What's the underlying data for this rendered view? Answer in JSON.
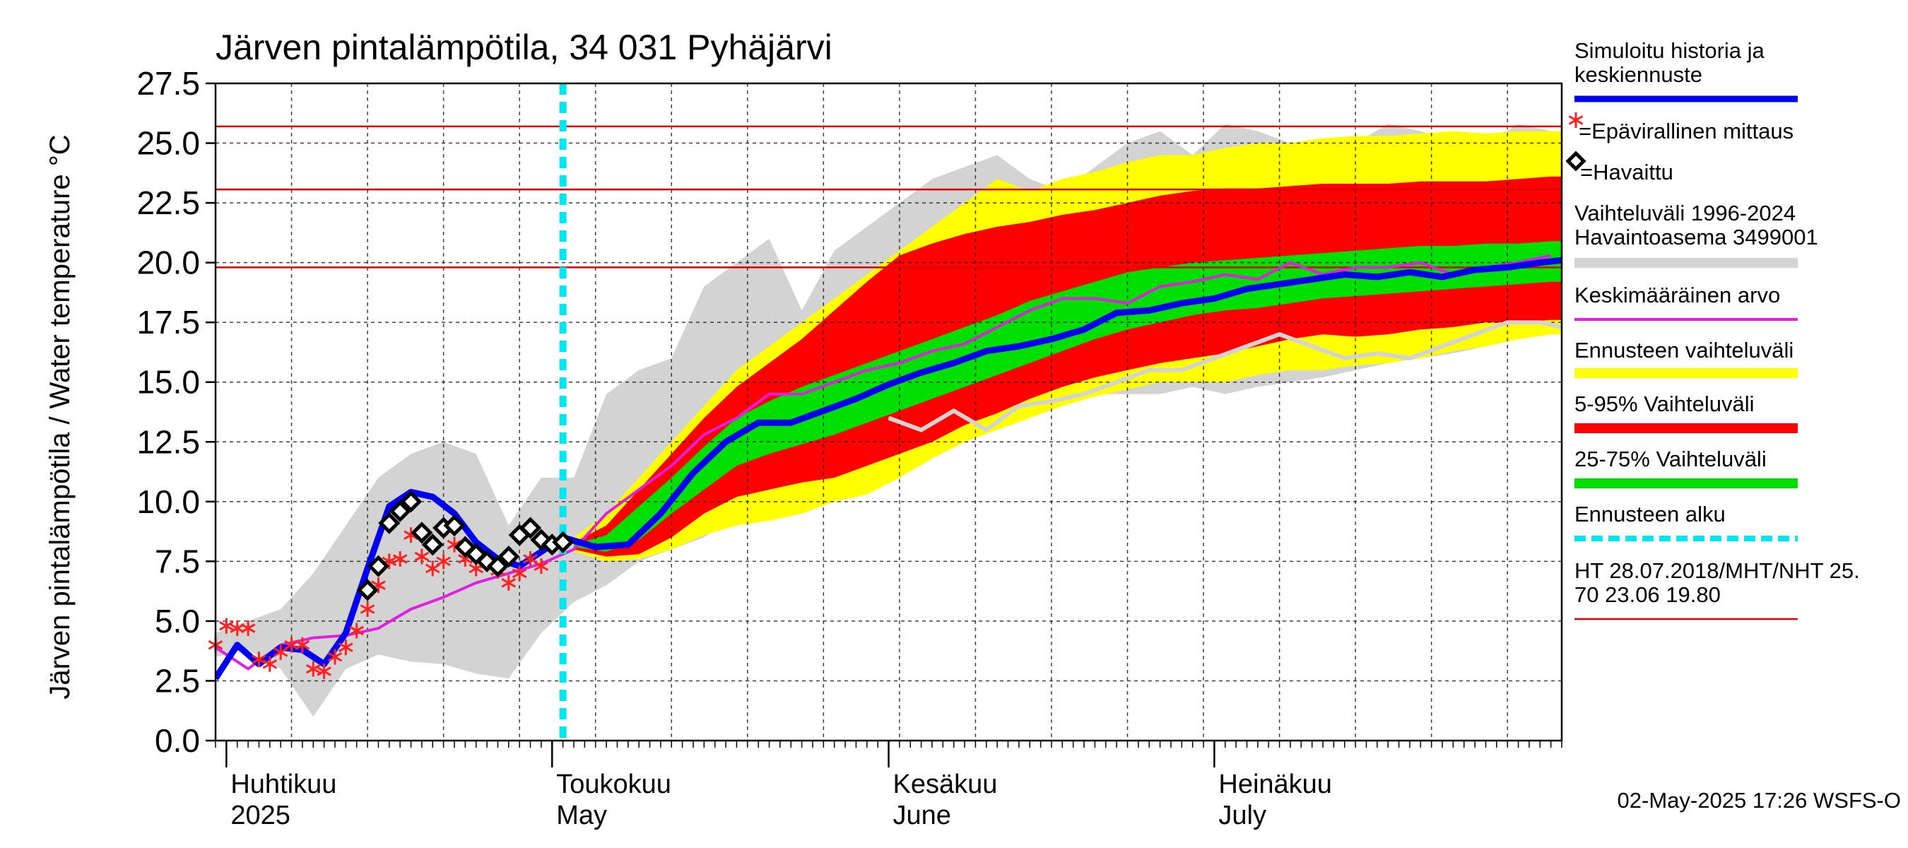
{
  "chart_data": {
    "type": "area",
    "title": "Järven pintalämpötila, 34 031 Pyhäjärvi",
    "ylabel": "Järven pintalämpötila / Water temperature °C",
    "ylim": [
      0,
      27.5
    ],
    "yticks": [
      "0.0",
      "2.5",
      "5.0",
      "7.5",
      "10.0",
      "12.5",
      "15.0",
      "17.5",
      "20.0",
      "22.5",
      "25.0",
      "27.5"
    ],
    "xlim": [
      "2025-03-31",
      "2025-08-02"
    ],
    "month_labels": [
      {
        "fi": "Huhtikuu",
        "en": "2025",
        "date": "2025-04-01"
      },
      {
        "fi": "Toukokuu",
        "en": "May",
        "date": "2025-05-01"
      },
      {
        "fi": "Kesäkuu",
        "en": "June",
        "date": "2025-06-01"
      },
      {
        "fi": "Heinäkuu",
        "en": "July",
        "date": "2025-07-01"
      }
    ],
    "forecast_start": "2025-05-02",
    "threshold_lines": [
      25.7,
      23.06,
      19.8
    ],
    "colors": {
      "simulated": "#0000ee",
      "unofficial": "#ff2020",
      "observed": "#000000",
      "history_range": "#d3d3d3",
      "history_mean": "#e020e0",
      "forecast_range": "#ffff00",
      "band_5_95": "#ff0000",
      "band_25_75": "#00e000",
      "forecast_start": "#00e5ee",
      "threshold": "#e00000",
      "history_year": "#d3d3d3"
    },
    "history_range": {
      "x": [
        "2025-03-31",
        "2025-04-03",
        "2025-04-06",
        "2025-04-09",
        "2025-04-12",
        "2025-04-15",
        "2025-04-18",
        "2025-04-21",
        "2025-04-24",
        "2025-04-27",
        "2025-04-30",
        "2025-05-03",
        "2025-05-06",
        "2025-05-09",
        "2025-05-12",
        "2025-05-15",
        "2025-05-18",
        "2025-05-21",
        "2025-05-24",
        "2025-05-27",
        "2025-05-30",
        "2025-06-02",
        "2025-06-05",
        "2025-06-08",
        "2025-06-11",
        "2025-06-14",
        "2025-06-17",
        "2025-06-20",
        "2025-06-23",
        "2025-06-26",
        "2025-06-29",
        "2025-07-02",
        "2025-07-05",
        "2025-07-08",
        "2025-07-11",
        "2025-07-14",
        "2025-07-17",
        "2025-07-20",
        "2025-07-23",
        "2025-07-26",
        "2025-07-29",
        "2025-08-01"
      ],
      "low": [
        3.5,
        3.8,
        3.0,
        1.0,
        3.0,
        3.6,
        3.3,
        3.2,
        2.8,
        2.6,
        4.5,
        5.8,
        6.5,
        7.5,
        8.0,
        8.5,
        9.5,
        11.5,
        11.5,
        12.0,
        12.5,
        12.8,
        13.0,
        13.5,
        13.5,
        13.8,
        14.2,
        14.5,
        14.5,
        14.5,
        14.8,
        14.5,
        14.8,
        15.0,
        15.2,
        15.5,
        15.8,
        16.0,
        16.2,
        16.5,
        16.8,
        17.0
      ],
      "high": [
        4.5,
        5.0,
        5.5,
        7.0,
        9.0,
        11.0,
        12.0,
        12.5,
        12.0,
        9.0,
        11.0,
        11.0,
        14.5,
        15.5,
        16.0,
        19.0,
        20.0,
        21.0,
        18.0,
        20.5,
        21.5,
        22.5,
        23.5,
        24.0,
        24.5,
        23.5,
        23.0,
        24.0,
        25.0,
        25.5,
        24.5,
        25.8,
        25.5,
        25.0,
        24.5,
        25.0,
        25.8,
        25.5,
        25.0,
        25.0,
        25.8,
        25.5
      ]
    },
    "history_mean": {
      "x": [
        "2025-03-31",
        "2025-04-03",
        "2025-04-06",
        "2025-04-09",
        "2025-04-12",
        "2025-04-15",
        "2025-04-18",
        "2025-04-21",
        "2025-04-24",
        "2025-04-27",
        "2025-04-30",
        "2025-05-03",
        "2025-05-06",
        "2025-05-09",
        "2025-05-12",
        "2025-05-15",
        "2025-05-18",
        "2025-05-21",
        "2025-05-24",
        "2025-05-27",
        "2025-05-30",
        "2025-06-02",
        "2025-06-05",
        "2025-06-08",
        "2025-06-11",
        "2025-06-14",
        "2025-06-17",
        "2025-06-20",
        "2025-06-23",
        "2025-06-26",
        "2025-06-29",
        "2025-07-02",
        "2025-07-05",
        "2025-07-08",
        "2025-07-11",
        "2025-07-14",
        "2025-07-17",
        "2025-07-20",
        "2025-07-23",
        "2025-07-26",
        "2025-07-29",
        "2025-08-01"
      ],
      "y": [
        3.9,
        3.0,
        4.0,
        4.3,
        4.4,
        4.7,
        5.5,
        6.0,
        6.6,
        7.0,
        7.4,
        8.0,
        9.5,
        10.5,
        11.5,
        12.8,
        13.5,
        14.5,
        14.5,
        15.0,
        15.5,
        15.8,
        16.3,
        16.6,
        17.3,
        18.0,
        18.5,
        18.5,
        18.3,
        19.0,
        19.2,
        19.5,
        19.3,
        20.0,
        19.5,
        19.8,
        19.8,
        20.0,
        19.5,
        19.8,
        20.0,
        20.3
      ]
    },
    "history_year": {
      "x": [
        "2025-06-01",
        "2025-06-04",
        "2025-06-07",
        "2025-06-10",
        "2025-06-13",
        "2025-06-16",
        "2025-06-19",
        "2025-06-22",
        "2025-06-25",
        "2025-06-28",
        "2025-07-01",
        "2025-07-04",
        "2025-07-07",
        "2025-07-10",
        "2025-07-13",
        "2025-07-16",
        "2025-07-19",
        "2025-07-22",
        "2025-07-25",
        "2025-07-28",
        "2025-07-31",
        "2025-08-02"
      ],
      "y": [
        13.5,
        13.0,
        13.8,
        13.0,
        14.0,
        14.2,
        14.5,
        15.0,
        15.5,
        15.5,
        16.0,
        16.5,
        17.0,
        16.5,
        16.0,
        16.2,
        16.0,
        16.5,
        17.0,
        17.5,
        17.5,
        17.3
      ]
    },
    "forecast_range": {
      "x": [
        "2025-05-03",
        "2025-05-06",
        "2025-05-09",
        "2025-05-12",
        "2025-05-15",
        "2025-05-18",
        "2025-05-21",
        "2025-05-24",
        "2025-05-27",
        "2025-05-30",
        "2025-06-02",
        "2025-06-05",
        "2025-06-08",
        "2025-06-11",
        "2025-06-14",
        "2025-06-17",
        "2025-06-20",
        "2025-06-23",
        "2025-06-26",
        "2025-06-29",
        "2025-07-02",
        "2025-07-05",
        "2025-07-08",
        "2025-07-11",
        "2025-07-14",
        "2025-07-17",
        "2025-07-20",
        "2025-07-23",
        "2025-07-26",
        "2025-07-29",
        "2025-08-01",
        "2025-08-02"
      ],
      "low": [
        7.9,
        7.5,
        7.6,
        8.0,
        8.6,
        9.0,
        9.2,
        9.5,
        10.0,
        10.3,
        11.0,
        11.8,
        12.5,
        13.0,
        13.5,
        14.0,
        14.4,
        14.7,
        15.0,
        15.0,
        15.0,
        15.3,
        15.5,
        15.5,
        15.7,
        15.8,
        16.0,
        16.3,
        16.5,
        16.8,
        17.0,
        17.0
      ],
      "high": [
        8.5,
        9.5,
        11.0,
        12.5,
        14.0,
        15.5,
        16.5,
        17.5,
        18.5,
        19.5,
        20.5,
        21.5,
        22.5,
        23.5,
        23.0,
        23.5,
        23.8,
        24.2,
        24.5,
        24.5,
        24.8,
        25.0,
        25.0,
        25.2,
        25.3,
        25.3,
        25.4,
        25.5,
        25.4,
        25.5,
        25.5,
        25.5
      ]
    },
    "band_5_95": {
      "x": [
        "2025-05-03",
        "2025-05-06",
        "2025-05-09",
        "2025-05-12",
        "2025-05-15",
        "2025-05-18",
        "2025-05-21",
        "2025-05-24",
        "2025-05-27",
        "2025-05-30",
        "2025-06-02",
        "2025-06-05",
        "2025-06-08",
        "2025-06-11",
        "2025-06-14",
        "2025-06-17",
        "2025-06-20",
        "2025-06-23",
        "2025-06-26",
        "2025-06-29",
        "2025-07-02",
        "2025-07-05",
        "2025-07-08",
        "2025-07-11",
        "2025-07-14",
        "2025-07-17",
        "2025-07-20",
        "2025-07-23",
        "2025-07-26",
        "2025-07-29",
        "2025-08-01",
        "2025-08-02"
      ],
      "low": [
        8.0,
        7.7,
        7.8,
        8.5,
        9.5,
        10.2,
        10.5,
        10.8,
        11.0,
        11.5,
        12.0,
        12.5,
        13.2,
        13.7,
        14.3,
        14.8,
        15.2,
        15.5,
        15.8,
        16.0,
        16.2,
        16.5,
        16.8,
        17.0,
        16.9,
        17.0,
        17.2,
        17.3,
        17.5,
        17.5,
        17.6,
        17.6
      ],
      "high": [
        8.3,
        9.0,
        10.5,
        12.0,
        13.5,
        14.8,
        15.8,
        16.8,
        18.0,
        19.2,
        20.3,
        20.8,
        21.2,
        21.5,
        21.7,
        22.0,
        22.2,
        22.5,
        22.8,
        23.0,
        23.1,
        23.1,
        23.2,
        23.3,
        23.3,
        23.3,
        23.4,
        23.4,
        23.4,
        23.5,
        23.6,
        23.6
      ]
    },
    "band_25_75": {
      "x": [
        "2025-05-03",
        "2025-05-06",
        "2025-05-09",
        "2025-05-12",
        "2025-05-15",
        "2025-05-18",
        "2025-05-21",
        "2025-05-24",
        "2025-05-27",
        "2025-05-30",
        "2025-06-02",
        "2025-06-05",
        "2025-06-08",
        "2025-06-11",
        "2025-06-14",
        "2025-06-17",
        "2025-06-20",
        "2025-06-23",
        "2025-06-26",
        "2025-06-29",
        "2025-07-02",
        "2025-07-05",
        "2025-07-08",
        "2025-07-11",
        "2025-07-14",
        "2025-07-17",
        "2025-07-20",
        "2025-07-23",
        "2025-07-26",
        "2025-07-29",
        "2025-08-01",
        "2025-08-02"
      ],
      "low": [
        8.1,
        7.9,
        8.4,
        9.5,
        10.5,
        11.5,
        12.0,
        12.4,
        12.8,
        13.3,
        13.8,
        14.3,
        14.8,
        15.3,
        15.8,
        16.3,
        16.8,
        17.2,
        17.5,
        17.8,
        18.0,
        18.1,
        18.3,
        18.5,
        18.6,
        18.7,
        18.8,
        18.9,
        19.0,
        19.1,
        19.2,
        19.2
      ],
      "high": [
        8.2,
        8.6,
        9.8,
        11.0,
        12.3,
        13.5,
        14.2,
        14.8,
        15.3,
        15.8,
        16.3,
        16.8,
        17.3,
        17.8,
        18.4,
        18.8,
        19.2,
        19.6,
        19.8,
        20.0,
        20.1,
        20.2,
        20.3,
        20.4,
        20.5,
        20.6,
        20.7,
        20.7,
        20.8,
        20.8,
        20.9,
        20.9
      ]
    },
    "simulated": {
      "x": [
        "2025-03-31",
        "2025-04-02",
        "2025-04-04",
        "2025-04-06",
        "2025-04-08",
        "2025-04-10",
        "2025-04-12",
        "2025-04-14",
        "2025-04-16",
        "2025-04-18",
        "2025-04-20",
        "2025-04-22",
        "2025-04-24",
        "2025-04-26",
        "2025-04-28",
        "2025-04-30",
        "2025-05-02",
        "2025-05-05",
        "2025-05-08",
        "2025-05-11",
        "2025-05-14",
        "2025-05-17",
        "2025-05-20",
        "2025-05-23",
        "2025-05-26",
        "2025-05-29",
        "2025-06-01",
        "2025-06-04",
        "2025-06-07",
        "2025-06-10",
        "2025-06-13",
        "2025-06-16",
        "2025-06-19",
        "2025-06-22",
        "2025-06-25",
        "2025-06-28",
        "2025-07-01",
        "2025-07-04",
        "2025-07-07",
        "2025-07-10",
        "2025-07-13",
        "2025-07-16",
        "2025-07-19",
        "2025-07-22",
        "2025-07-25",
        "2025-07-28",
        "2025-07-31",
        "2025-08-02"
      ],
      "y": [
        2.6,
        4.0,
        3.2,
        3.9,
        3.8,
        3.2,
        4.5,
        7.2,
        9.8,
        10.4,
        10.2,
        9.5,
        8.3,
        7.6,
        7.3,
        7.9,
        8.5,
        8.1,
        8.2,
        9.5,
        11.2,
        12.5,
        13.3,
        13.3,
        13.8,
        14.3,
        14.9,
        15.4,
        15.8,
        16.3,
        16.5,
        16.8,
        17.2,
        17.9,
        18.0,
        18.3,
        18.5,
        18.9,
        19.1,
        19.3,
        19.5,
        19.4,
        19.6,
        19.4,
        19.7,
        19.8,
        20.0,
        20.1
      ]
    },
    "unofficial": {
      "x": [
        "2025-03-31",
        "2025-04-01",
        "2025-04-02",
        "2025-04-03",
        "2025-04-04",
        "2025-04-05",
        "2025-04-06",
        "2025-04-07",
        "2025-04-08",
        "2025-04-09",
        "2025-04-10",
        "2025-04-11",
        "2025-04-12",
        "2025-04-13",
        "2025-04-14",
        "2025-04-15",
        "2025-04-16",
        "2025-04-17",
        "2025-04-18",
        "2025-04-19",
        "2025-04-20",
        "2025-04-21",
        "2025-04-22",
        "2025-04-23",
        "2025-04-24",
        "2025-04-25",
        "2025-04-26",
        "2025-04-27",
        "2025-04-28",
        "2025-04-29",
        "2025-04-30"
      ],
      "y": [
        4.0,
        4.8,
        4.7,
        4.7,
        3.4,
        3.2,
        3.7,
        4.0,
        4.0,
        3.0,
        2.9,
        3.5,
        3.9,
        4.6,
        5.5,
        6.5,
        7.5,
        7.6,
        8.6,
        7.7,
        7.2,
        7.5,
        8.2,
        7.6,
        7.2,
        7.4,
        7.1,
        6.6,
        7.0,
        7.6,
        7.3
      ]
    },
    "observed": {
      "x": [
        "2025-04-14",
        "2025-04-15",
        "2025-04-16",
        "2025-04-17",
        "2025-04-18",
        "2025-04-19",
        "2025-04-20",
        "2025-04-21",
        "2025-04-22",
        "2025-04-23",
        "2025-04-24",
        "2025-04-25",
        "2025-04-26",
        "2025-04-27",
        "2025-04-28",
        "2025-04-29",
        "2025-04-30",
        "2025-05-01",
        "2025-05-02"
      ],
      "y": [
        6.3,
        7.3,
        9.1,
        9.6,
        10.0,
        8.7,
        8.2,
        8.9,
        9.0,
        8.1,
        7.8,
        7.5,
        7.3,
        7.7,
        8.6,
        8.9,
        8.4,
        8.2,
        8.3
      ]
    },
    "legend": {
      "simulated": [
        "Simuloitu historia ja",
        "keskiennuste"
      ],
      "unofficial": "=Epävirallinen mittaus",
      "observed": "=Havaittu",
      "history_range": [
        "Vaihteluväli 1996-2024",
        " Havaintoasema 3499001"
      ],
      "history_mean": "Keskimääräinen arvo",
      "forecast_range": "Ennusteen vaihteluväli",
      "band_5_95": "5-95% Vaihteluväli",
      "band_25_75": "25-75% Vaihteluväli",
      "forecast_start": "Ennusteen alku",
      "threshold": [
        "HT 28.07.2018/MHT/NHT 25.",
        "70 23.06 19.80"
      ]
    },
    "footer": "02-May-2025 17:26 WSFS-O"
  }
}
